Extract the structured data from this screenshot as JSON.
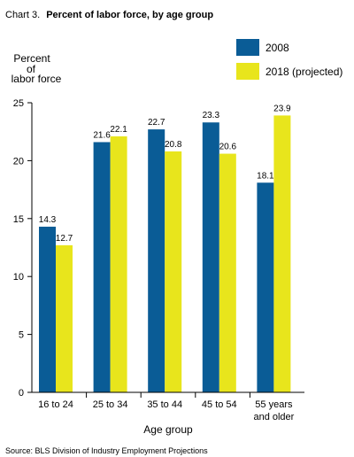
{
  "chart_data": {
    "type": "bar",
    "title_prefix": "Chart 3.",
    "title": "Percent of labor force, by age group",
    "ylabel": [
      "Percent",
      "of",
      "labor force"
    ],
    "xlabel": "Age group",
    "categories": [
      [
        "16 to 24"
      ],
      [
        "25 to 34"
      ],
      [
        "35 to 44"
      ],
      [
        "45 to 54"
      ],
      [
        "55 years",
        "and older"
      ]
    ],
    "series": [
      {
        "name": "2008",
        "color": "#0a5c96",
        "values": [
          14.3,
          21.6,
          22.7,
          23.3,
          18.1
        ],
        "labels": [
          "14.3",
          "21.6",
          "22.7",
          "23.3",
          "18.1"
        ]
      },
      {
        "name": "2018 (projected)",
        "color": "#e8e51c",
        "values": [
          12.7,
          22.1,
          20.8,
          20.6,
          23.9
        ],
        "labels": [
          "12.7",
          "22.1",
          "20.8",
          "20.6",
          "23.9"
        ]
      }
    ],
    "ylim": [
      0,
      25
    ],
    "yticks": [
      0,
      5,
      10,
      15,
      20,
      25
    ],
    "ytick_labels": [
      "0",
      "5",
      "10",
      "15",
      "20",
      "25"
    ],
    "grid": false,
    "legend_position": "top-right",
    "source": "Source: BLS Division of Industry Employment Projections"
  }
}
